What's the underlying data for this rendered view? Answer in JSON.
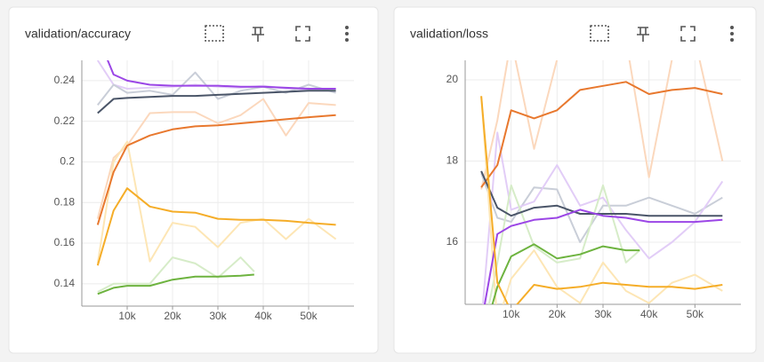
{
  "chart_data": [
    {
      "type": "line",
      "title": "validation/accuracy",
      "grid": true,
      "xlim": [
        0,
        60000
      ],
      "ylim": [
        0.129,
        0.25
      ],
      "xticks": [
        {
          "value": 10000,
          "label": "10k"
        },
        {
          "value": 20000,
          "label": "20k"
        },
        {
          "value": 30000,
          "label": "30k"
        },
        {
          "value": 40000,
          "label": "40k"
        },
        {
          "value": 50000,
          "label": "50k"
        }
      ],
      "yticks": [
        0.14,
        0.16,
        0.18,
        0.2,
        0.22,
        0.24
      ],
      "series": [
        {
          "color": "#e2cdf7",
          "x": [
            3500,
            7000,
            10000,
            15000,
            20000,
            25000,
            30000,
            35000,
            40000,
            45000,
            50000,
            56000
          ],
          "values": [
            0.25,
            0.238,
            0.236,
            0.2365,
            0.237,
            0.238,
            0.237,
            0.2365,
            0.2375,
            0.236,
            0.2355,
            0.236
          ]
        },
        {
          "color": "#c9ced8",
          "x": [
            3500,
            7000,
            10000,
            15000,
            20000,
            25000,
            30000,
            35000,
            40000,
            45000,
            50000,
            56000
          ],
          "values": [
            0.228,
            0.238,
            0.234,
            0.235,
            0.233,
            0.244,
            0.231,
            0.235,
            0.237,
            0.234,
            0.238,
            0.234
          ]
        },
        {
          "color": "#fbd8bd",
          "x": [
            3500,
            7000,
            10000,
            15000,
            20000,
            25000,
            30000,
            35000,
            40000,
            45000,
            50000,
            56000
          ],
          "values": [
            0.172,
            0.202,
            0.208,
            0.224,
            0.2245,
            0.2245,
            0.219,
            0.223,
            0.231,
            0.213,
            0.229,
            0.228
          ]
        },
        {
          "color": "#fde6b5",
          "x": [
            3500,
            7000,
            10000,
            15000,
            20000,
            25000,
            30000,
            35000,
            40000,
            45000,
            50000,
            56000
          ],
          "values": [
            0.15,
            0.2,
            0.21,
            0.151,
            0.17,
            0.168,
            0.158,
            0.17,
            0.172,
            0.162,
            0.172,
            0.162
          ]
        },
        {
          "color": "#d6ecc8",
          "x": [
            3500,
            7000,
            10000,
            15000,
            20000,
            25000,
            30000,
            35000,
            38000
          ],
          "values": [
            0.136,
            0.14,
            0.14,
            0.14,
            0.153,
            0.15,
            0.143,
            0.153,
            0.146
          ]
        },
        {
          "color": "#9b46e6",
          "x": [
            3500,
            7000,
            10000,
            15000,
            20000,
            25000,
            30000,
            35000,
            40000,
            45000,
            50000,
            56000
          ],
          "values": [
            0.262,
            0.243,
            0.24,
            0.238,
            0.2375,
            0.2375,
            0.2375,
            0.237,
            0.237,
            0.2365,
            0.236,
            0.236
          ]
        },
        {
          "color": "#4a5568",
          "x": [
            3500,
            7000,
            10000,
            15000,
            20000,
            25000,
            30000,
            35000,
            40000,
            45000,
            50000,
            56000
          ],
          "values": [
            0.224,
            0.231,
            0.2315,
            0.232,
            0.2325,
            0.2325,
            0.233,
            0.2335,
            0.234,
            0.2345,
            0.235,
            0.235
          ]
        },
        {
          "color": "#e8782e",
          "x": [
            3500,
            7000,
            10000,
            15000,
            20000,
            25000,
            30000,
            35000,
            40000,
            45000,
            50000,
            56000
          ],
          "values": [
            0.169,
            0.195,
            0.208,
            0.213,
            0.216,
            0.2175,
            0.218,
            0.219,
            0.22,
            0.221,
            0.222,
            0.223
          ]
        },
        {
          "color": "#f5ad28",
          "x": [
            3500,
            7000,
            10000,
            15000,
            20000,
            25000,
            30000,
            35000,
            40000,
            45000,
            50000,
            56000
          ],
          "values": [
            0.149,
            0.176,
            0.187,
            0.178,
            0.1755,
            0.175,
            0.172,
            0.1715,
            0.1715,
            0.171,
            0.17,
            0.169
          ]
        },
        {
          "color": "#6db33f",
          "x": [
            3500,
            7000,
            10000,
            15000,
            20000,
            25000,
            30000,
            35000,
            38000
          ],
          "values": [
            0.135,
            0.138,
            0.139,
            0.139,
            0.142,
            0.1435,
            0.1435,
            0.144,
            0.1445
          ]
        }
      ]
    },
    {
      "type": "line",
      "title": "validation/loss",
      "grid": true,
      "xlim": [
        0,
        60000
      ],
      "ylim": [
        14.47,
        20.48
      ],
      "xticks": [
        {
          "value": 10000,
          "label": "10k"
        },
        {
          "value": 20000,
          "label": "20k"
        },
        {
          "value": 30000,
          "label": "30k"
        },
        {
          "value": 40000,
          "label": "40k"
        },
        {
          "value": 50000,
          "label": "50k"
        }
      ],
      "yticks": [
        16,
        18,
        20
      ],
      "series": [
        {
          "color": "#fbd8bd",
          "x": [
            3500,
            7000,
            10000,
            15000,
            20000,
            25000,
            30000,
            35000,
            40000,
            45000,
            50000,
            56000
          ],
          "values": [
            17.3,
            19.0,
            21,
            18.3,
            20.5,
            21,
            20.5,
            21,
            17.6,
            20.5,
            21,
            18.0
          ]
        },
        {
          "color": "#c9ced8",
          "x": [
            3500,
            7000,
            10000,
            15000,
            20000,
            25000,
            30000,
            35000,
            40000,
            45000,
            50000,
            56000
          ],
          "values": [
            17.7,
            16.6,
            16.5,
            17.35,
            17.3,
            16.0,
            16.9,
            16.9,
            17.1,
            16.9,
            16.7,
            17.1
          ]
        },
        {
          "color": "#e2cdf7",
          "x": [
            3500,
            7000,
            10000,
            15000,
            20000,
            25000,
            30000,
            35000,
            40000,
            45000,
            50000,
            56000
          ],
          "values": [
            14,
            18.7,
            16.8,
            17.0,
            17.9,
            16.9,
            17.1,
            16.3,
            15.6,
            16.0,
            16.5,
            17.5
          ]
        },
        {
          "color": "#d6ecc8",
          "x": [
            3500,
            7000,
            10000,
            15000,
            20000,
            25000,
            30000,
            35000,
            38000
          ],
          "values": [
            13.5,
            15.5,
            17.4,
            15.9,
            15.5,
            15.6,
            17.4,
            15.5,
            15.8
          ]
        },
        {
          "color": "#fde6b5",
          "x": [
            3500,
            7000,
            10000,
            15000,
            20000,
            25000,
            30000,
            35000,
            40000,
            45000,
            50000,
            56000
          ],
          "values": [
            19.6,
            14.0,
            15.1,
            15.8,
            14.9,
            14.5,
            15.5,
            14.8,
            14.5,
            15.0,
            15.2,
            14.8
          ]
        },
        {
          "color": "#e8782e",
          "x": [
            3500,
            7000,
            10000,
            15000,
            20000,
            25000,
            30000,
            35000,
            40000,
            45000,
            50000,
            56000
          ],
          "values": [
            17.35,
            17.9,
            19.25,
            19.05,
            19.25,
            19.75,
            19.85,
            19.95,
            19.65,
            19.75,
            19.8,
            19.65
          ]
        },
        {
          "color": "#4a5568",
          "x": [
            3500,
            7000,
            10000,
            15000,
            20000,
            25000,
            30000,
            35000,
            40000,
            45000,
            50000,
            56000
          ],
          "values": [
            17.75,
            16.85,
            16.65,
            16.85,
            16.9,
            16.7,
            16.7,
            16.7,
            16.65,
            16.65,
            16.65,
            16.65
          ]
        },
        {
          "color": "#9b46e6",
          "x": [
            3500,
            7000,
            10000,
            15000,
            20000,
            25000,
            30000,
            35000,
            40000,
            45000,
            50000,
            56000
          ],
          "values": [
            14.0,
            16.2,
            16.4,
            16.55,
            16.6,
            16.8,
            16.65,
            16.6,
            16.5,
            16.5,
            16.5,
            16.55
          ]
        },
        {
          "color": "#6db33f",
          "x": [
            3500,
            7000,
            10000,
            15000,
            20000,
            25000,
            30000,
            35000,
            38000
          ],
          "values": [
            13.5,
            14.9,
            15.65,
            15.95,
            15.6,
            15.7,
            15.9,
            15.8,
            15.8
          ]
        },
        {
          "color": "#f5ad28",
          "x": [
            3500,
            7000,
            10000,
            15000,
            20000,
            25000,
            30000,
            35000,
            40000,
            45000,
            50000,
            56000
          ],
          "values": [
            19.6,
            15.0,
            14.3,
            14.95,
            14.85,
            14.9,
            15.0,
            14.95,
            14.9,
            14.9,
            14.85,
            14.95
          ]
        }
      ]
    }
  ]
}
